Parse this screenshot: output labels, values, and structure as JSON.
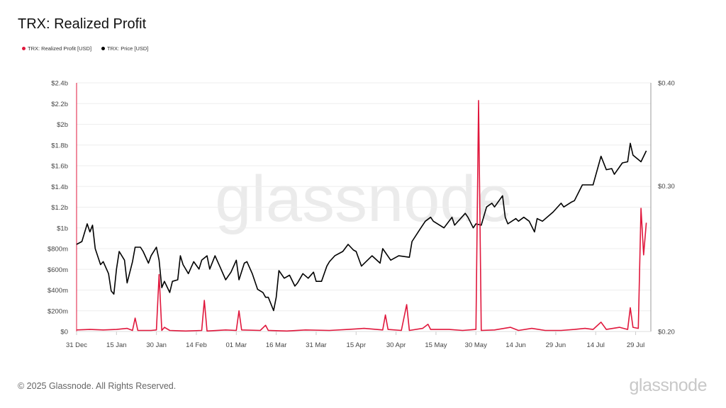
{
  "header": {
    "title": "TRX: Realized Profit"
  },
  "footer": {
    "copyright": "© 2025 Glassnode. All Rights Reserved.",
    "logo": "glassnode",
    "watermark": "glassnode"
  },
  "colors": {
    "profit": "#e0173c",
    "price": "#000000",
    "grid": "#eeeeee",
    "left_axis": "#e0173c",
    "right_axis": "#999999"
  },
  "chart_data": {
    "type": "line",
    "title": "TRX: Realized Profit",
    "legend_position": "top-left",
    "grid": true,
    "x_ticks": [
      "31 Dec",
      "15 Jan",
      "30 Jan",
      "14 Feb",
      "01 Mar",
      "16 Mar",
      "31 Mar",
      "15 Apr",
      "30 Apr",
      "15 May",
      "30 May",
      "14 Jun",
      "29 Jun",
      "14 Jul",
      "29 Jul"
    ],
    "x_tick_dates": [
      "2024-12-31",
      "2025-01-15",
      "2025-01-30",
      "2025-02-14",
      "2025-03-01",
      "2025-03-16",
      "2025-03-31",
      "2025-04-15",
      "2025-04-30",
      "2025-05-15",
      "2025-05-30",
      "2025-06-14",
      "2025-06-29",
      "2025-07-14",
      "2025-07-29"
    ],
    "x_range": [
      "2024-12-31",
      "2025-08-02"
    ],
    "y_left": {
      "range": [
        0,
        2400000000
      ],
      "ticks": [
        "$0",
        "$200m",
        "$400m",
        "$600m",
        "$800m",
        "$1b",
        "$1.2b",
        "$1.4b",
        "$1.6b",
        "$1.8b",
        "$2b",
        "$2.2b",
        "$2.4b"
      ],
      "tick_values": [
        0,
        200000000,
        400000000,
        600000000,
        800000000,
        1000000000,
        1200000000,
        1400000000,
        1600000000,
        1800000000,
        2000000000,
        2200000000,
        2400000000
      ]
    },
    "y_right": {
      "scale": "log",
      "range": [
        0.2,
        0.4
      ],
      "ticks": [
        "$0.20",
        "$0.30",
        "$0.40"
      ],
      "tick_values": [
        0.2,
        0.3,
        0.4
      ]
    },
    "series": [
      {
        "name": "TRX: Realized Profit [USD]",
        "axis": "left",
        "color": "#e0173c",
        "points": [
          [
            "2024-12-31",
            15000000.0
          ],
          [
            "2025-01-05",
            20000000.0
          ],
          [
            "2025-01-10",
            15000000.0
          ],
          [
            "2025-01-15",
            20000000.0
          ],
          [
            "2025-01-19",
            30000000.0
          ],
          [
            "2025-01-21",
            10000000.0
          ],
          [
            "2025-01-22",
            130000000.0
          ],
          [
            "2025-01-23",
            10000000.0
          ],
          [
            "2025-01-28",
            10000000.0
          ],
          [
            "2025-01-30",
            15000000.0
          ],
          [
            "2025-01-31",
            550000000.0
          ],
          [
            "2025-02-01",
            10000000.0
          ],
          [
            "2025-02-02",
            40000000.0
          ],
          [
            "2025-02-04",
            10000000.0
          ],
          [
            "2025-02-10",
            5000000.0
          ],
          [
            "2025-02-16",
            10000000.0
          ],
          [
            "2025-02-17",
            300000000.0
          ],
          [
            "2025-02-18",
            5000000.0
          ],
          [
            "2025-02-25",
            15000000.0
          ],
          [
            "2025-03-01",
            10000000.0
          ],
          [
            "2025-03-02",
            200000000.0
          ],
          [
            "2025-03-03",
            15000000.0
          ],
          [
            "2025-03-10",
            10000000.0
          ],
          [
            "2025-03-12",
            60000000.0
          ],
          [
            "2025-03-13",
            10000000.0
          ],
          [
            "2025-03-20",
            5000000.0
          ],
          [
            "2025-03-27",
            15000000.0
          ],
          [
            "2025-04-05",
            10000000.0
          ],
          [
            "2025-04-12",
            20000000.0
          ],
          [
            "2025-04-18",
            30000000.0
          ],
          [
            "2025-04-25",
            15000000.0
          ],
          [
            "2025-04-26",
            160000000.0
          ],
          [
            "2025-04-27",
            20000000.0
          ],
          [
            "2025-05-02",
            10000000.0
          ],
          [
            "2025-05-04",
            260000000.0
          ],
          [
            "2025-05-05",
            10000000.0
          ],
          [
            "2025-05-10",
            30000000.0
          ],
          [
            "2025-05-12",
            70000000.0
          ],
          [
            "2025-05-13",
            20000000.0
          ],
          [
            "2025-05-20",
            20000000.0
          ],
          [
            "2025-05-25",
            10000000.0
          ],
          [
            "2025-05-30",
            20000000.0
          ],
          [
            "2025-05-31",
            2230000000.0
          ],
          [
            "2025-06-01",
            10000000.0
          ],
          [
            "2025-06-06",
            15000000.0
          ],
          [
            "2025-06-12",
            40000000.0
          ],
          [
            "2025-06-15",
            10000000.0
          ],
          [
            "2025-06-20",
            30000000.0
          ],
          [
            "2025-06-25",
            10000000.0
          ],
          [
            "2025-07-01",
            10000000.0
          ],
          [
            "2025-07-06",
            20000000.0
          ],
          [
            "2025-07-10",
            30000000.0
          ],
          [
            "2025-07-13",
            20000000.0
          ],
          [
            "2025-07-16",
            90000000.0
          ],
          [
            "2025-07-18",
            20000000.0
          ],
          [
            "2025-07-23",
            40000000.0
          ],
          [
            "2025-07-26",
            20000000.0
          ],
          [
            "2025-07-27",
            230000000.0
          ],
          [
            "2025-07-28",
            40000000.0
          ],
          [
            "2025-07-30",
            30000000.0
          ],
          [
            "2025-07-31",
            1190000000.0
          ],
          [
            "2025-08-01",
            740000000.0
          ],
          [
            "2025-08-02",
            1050000000.0
          ]
        ]
      },
      {
        "name": "TRX: Price [USD]",
        "axis": "right",
        "color": "#000000",
        "points": [
          [
            "2024-12-31",
            0.255
          ],
          [
            "2025-01-02",
            0.257
          ],
          [
            "2025-01-04",
            0.27
          ],
          [
            "2025-01-05",
            0.264
          ],
          [
            "2025-01-06",
            0.269
          ],
          [
            "2025-01-07",
            0.252
          ],
          [
            "2025-01-09",
            0.241
          ],
          [
            "2025-01-10",
            0.243
          ],
          [
            "2025-01-12",
            0.235
          ],
          [
            "2025-01-13",
            0.224
          ],
          [
            "2025-01-14",
            0.222
          ],
          [
            "2025-01-15",
            0.238
          ],
          [
            "2025-01-16",
            0.25
          ],
          [
            "2025-01-18",
            0.244
          ],
          [
            "2025-01-19",
            0.229
          ],
          [
            "2025-01-21",
            0.243
          ],
          [
            "2025-01-22",
            0.253
          ],
          [
            "2025-01-24",
            0.253
          ],
          [
            "2025-01-25",
            0.25
          ],
          [
            "2025-01-27",
            0.242
          ],
          [
            "2025-01-28",
            0.247
          ],
          [
            "2025-01-30",
            0.253
          ],
          [
            "2025-01-31",
            0.244
          ],
          [
            "2025-02-01",
            0.226
          ],
          [
            "2025-02-02",
            0.23
          ],
          [
            "2025-02-04",
            0.223
          ],
          [
            "2025-02-05",
            0.23
          ],
          [
            "2025-02-07",
            0.231
          ],
          [
            "2025-02-08",
            0.247
          ],
          [
            "2025-02-09",
            0.241
          ],
          [
            "2025-02-11",
            0.235
          ],
          [
            "2025-02-13",
            0.243
          ],
          [
            "2025-02-15",
            0.238
          ],
          [
            "2025-02-16",
            0.244
          ],
          [
            "2025-02-18",
            0.247
          ],
          [
            "2025-02-19",
            0.238
          ],
          [
            "2025-02-21",
            0.247
          ],
          [
            "2025-02-23",
            0.239
          ],
          [
            "2025-02-25",
            0.231
          ],
          [
            "2025-02-27",
            0.236
          ],
          [
            "2025-03-01",
            0.244
          ],
          [
            "2025-03-02",
            0.231
          ],
          [
            "2025-03-04",
            0.242
          ],
          [
            "2025-03-05",
            0.243
          ],
          [
            "2025-03-07",
            0.235
          ],
          [
            "2025-03-09",
            0.225
          ],
          [
            "2025-03-11",
            0.223
          ],
          [
            "2025-03-12",
            0.22
          ],
          [
            "2025-03-13",
            0.22
          ],
          [
            "2025-03-15",
            0.212
          ],
          [
            "2025-03-16",
            0.22
          ],
          [
            "2025-03-17",
            0.237
          ],
          [
            "2025-03-19",
            0.232
          ],
          [
            "2025-03-21",
            0.234
          ],
          [
            "2025-03-23",
            0.227
          ],
          [
            "2025-03-24",
            0.229
          ],
          [
            "2025-03-26",
            0.235
          ],
          [
            "2025-03-28",
            0.232
          ],
          [
            "2025-03-30",
            0.236
          ],
          [
            "2025-03-31",
            0.23
          ],
          [
            "2025-04-02",
            0.23
          ],
          [
            "2025-04-04",
            0.24
          ],
          [
            "2025-04-05",
            0.243
          ],
          [
            "2025-04-07",
            0.247
          ],
          [
            "2025-04-10",
            0.25
          ],
          [
            "2025-04-12",
            0.255
          ],
          [
            "2025-04-14",
            0.251
          ],
          [
            "2025-04-15",
            0.25
          ],
          [
            "2025-04-17",
            0.24
          ],
          [
            "2025-04-21",
            0.247
          ],
          [
            "2025-04-24",
            0.242
          ],
          [
            "2025-04-25",
            0.252
          ],
          [
            "2025-04-28",
            0.244
          ],
          [
            "2025-05-01",
            0.247
          ],
          [
            "2025-05-05",
            0.246
          ],
          [
            "2025-05-06",
            0.257
          ],
          [
            "2025-05-09",
            0.266
          ],
          [
            "2025-05-11",
            0.272
          ],
          [
            "2025-05-13",
            0.275
          ],
          [
            "2025-05-14",
            0.272
          ],
          [
            "2025-05-18",
            0.267
          ],
          [
            "2025-05-21",
            0.275
          ],
          [
            "2025-05-22",
            0.269
          ],
          [
            "2025-05-26",
            0.278
          ],
          [
            "2025-05-27",
            0.275
          ],
          [
            "2025-05-29",
            0.267
          ],
          [
            "2025-05-30",
            0.27
          ],
          [
            "2025-06-01",
            0.269
          ],
          [
            "2025-06-03",
            0.283
          ],
          [
            "2025-06-05",
            0.286
          ],
          [
            "2025-06-06",
            0.283
          ],
          [
            "2025-06-09",
            0.292
          ],
          [
            "2025-06-10",
            0.275
          ],
          [
            "2025-06-11",
            0.27
          ],
          [
            "2025-06-14",
            0.274
          ],
          [
            "2025-06-15",
            0.272
          ],
          [
            "2025-06-17",
            0.275
          ],
          [
            "2025-06-19",
            0.272
          ],
          [
            "2025-06-21",
            0.264
          ],
          [
            "2025-06-22",
            0.274
          ],
          [
            "2025-06-24",
            0.272
          ],
          [
            "2025-06-28",
            0.279
          ],
          [
            "2025-07-01",
            0.286
          ],
          [
            "2025-07-02",
            0.283
          ],
          [
            "2025-07-05",
            0.287
          ],
          [
            "2025-07-06",
            0.288
          ],
          [
            "2025-07-09",
            0.301
          ],
          [
            "2025-07-13",
            0.301
          ],
          [
            "2025-07-16",
            0.326
          ],
          [
            "2025-07-18",
            0.314
          ],
          [
            "2025-07-20",
            0.315
          ],
          [
            "2025-07-21",
            0.31
          ],
          [
            "2025-07-24",
            0.32
          ],
          [
            "2025-07-26",
            0.321
          ],
          [
            "2025-07-27",
            0.338
          ],
          [
            "2025-07-28",
            0.327
          ],
          [
            "2025-07-31",
            0.321
          ],
          [
            "2025-08-02",
            0.331
          ]
        ]
      }
    ]
  }
}
